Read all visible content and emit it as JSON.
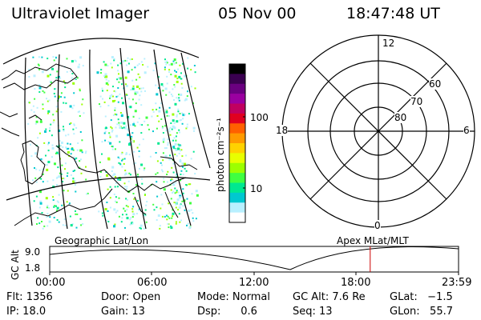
{
  "header": {
    "title": "Ultraviolet Imager",
    "date": "05 Nov 00",
    "time": "18:47:48 UT"
  },
  "colorbar": {
    "unit_label": "photon cm⁻²s⁻¹",
    "ticks": [
      "100",
      "10"
    ],
    "colors": [
      "#000000",
      "#3a0050",
      "#6a0080",
      "#9a00a0",
      "#c00060",
      "#e00020",
      "#ff6000",
      "#ff9a00",
      "#ffd200",
      "#e8ff00",
      "#9cff00",
      "#40ff40",
      "#00e890",
      "#00c8d0",
      "#b8f0ff",
      "#ffffff"
    ]
  },
  "polar": {
    "mlt_labels": {
      "top": "12",
      "left": "18",
      "right": "6",
      "bottom": "0"
    },
    "lat_labels": [
      "60",
      "70",
      "80"
    ]
  },
  "timeline": {
    "left_label": "Geographic Lat/Lon",
    "right_label": "Apex MLat/MLT",
    "yaxis_label": "GC Alt",
    "y_ticks": [
      "9.0",
      "1.8"
    ],
    "x_ticks": [
      "00:00",
      "06:00",
      "12:00",
      "18:00",
      "23:59"
    ],
    "marker_time_hours": 18.8,
    "marker_color": "#cc0000"
  },
  "status": {
    "flt": "Flt: 1356",
    "ip": "IP: 18.0",
    "door": "Door: Open",
    "gain": "Gain: 13",
    "mode": "Mode: Normal",
    "dsp": "Dsp:      0.6",
    "gcalt": "GC Alt: 7.6 Re",
    "seq": "Seq: 13",
    "glat": "GLat:   −1.5",
    "glon": "GLon:   55.7"
  }
}
